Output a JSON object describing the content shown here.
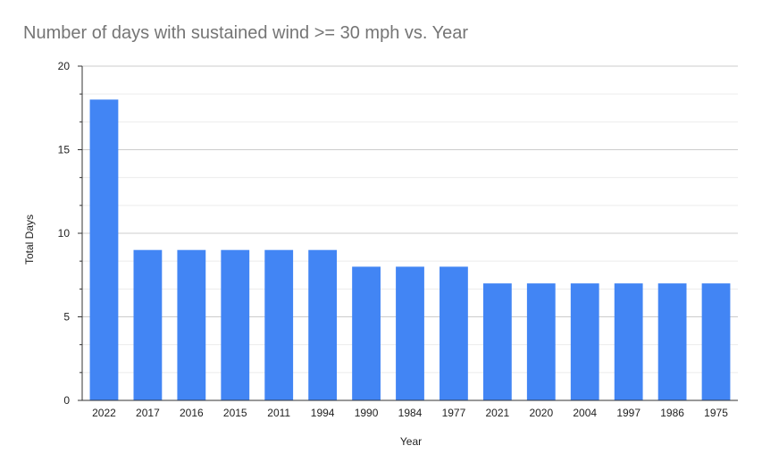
{
  "chart_data": {
    "type": "bar",
    "title": "Number of days with sustained wind >= 30 mph vs. Year",
    "xlabel": "Year",
    "ylabel": "Total Days",
    "categories": [
      "2022",
      "2017",
      "2016",
      "2015",
      "2011",
      "1994",
      "1990",
      "1984",
      "1977",
      "2021",
      "2020",
      "2004",
      "1997",
      "1986",
      "1975"
    ],
    "series": [
      {
        "values": [
          18,
          9,
          9,
          9,
          9,
          9,
          8,
          8,
          8,
          7,
          7,
          7,
          7,
          7,
          7
        ]
      }
    ],
    "ylim": [
      0,
      20
    ],
    "yticks": [
      0,
      5,
      10,
      15,
      20
    ],
    "grid": true,
    "legend": "none",
    "bar_color": "#4285f4",
    "gridline_color": "#cccccc",
    "minor_gridline_color": "#ececec"
  }
}
